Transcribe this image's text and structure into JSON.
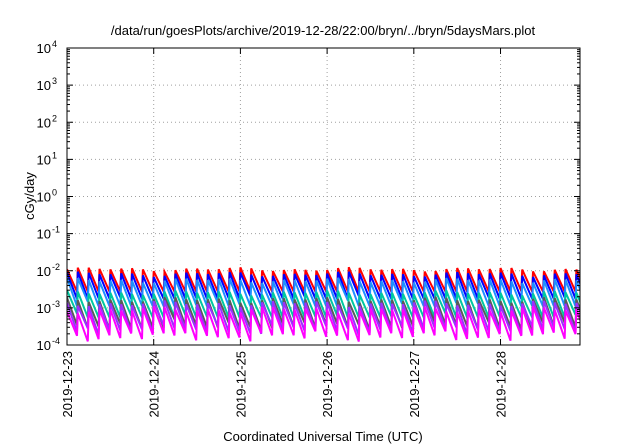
{
  "chart_data": {
    "type": "line",
    "title": "/data/run/goesPlots/archive/2019-12-28/22:00/bryn/../bryn/5daysMars.plot",
    "xlabel": "Coordinated Universal Time (UTC)",
    "ylabel": "cGy/day",
    "yscale": "log",
    "ylim": [
      0.0001,
      10000
    ],
    "xlim": [
      "2019-12-23",
      "2019-12-28T22:00"
    ],
    "grid": true,
    "y_ticks": [
      {
        "value": 0.0001,
        "base": "10",
        "exp": "-4"
      },
      {
        "value": 0.001,
        "base": "10",
        "exp": "-3"
      },
      {
        "value": 0.01,
        "base": "10",
        "exp": "-2"
      },
      {
        "value": 0.1,
        "base": "10",
        "exp": "-1"
      },
      {
        "value": 1,
        "base": "10",
        "exp": "0"
      },
      {
        "value": 10,
        "base": "10",
        "exp": "1"
      },
      {
        "value": 100,
        "base": "10",
        "exp": "2"
      },
      {
        "value": 1000,
        "base": "10",
        "exp": "3"
      },
      {
        "value": 10000,
        "base": "10",
        "exp": "4"
      }
    ],
    "x_ticks": [
      "2019-12-23",
      "2019-12-24",
      "2019-12-25",
      "2019-12-26",
      "2019-12-27",
      "2019-12-28"
    ],
    "series": [
      {
        "color": "#ff0000",
        "level_range": [
          0.0055,
          0.0125
        ]
      },
      {
        "color": "#0000ff",
        "level_range": [
          0.0035,
          0.0095
        ]
      },
      {
        "color": "#1e90ff",
        "level_range": [
          0.0022,
          0.0065
        ]
      },
      {
        "color": "#00c8a0",
        "level_range": [
          0.0011,
          0.003
        ]
      },
      {
        "color": "#5a5a5a",
        "level_range": [
          0.0005,
          0.002
        ]
      },
      {
        "color": "#9b30ff",
        "level_range": [
          0.00035,
          0.0016
        ]
      },
      {
        "color": "#ff00ff",
        "level_range": [
          0.0002,
          0.0011
        ]
      }
    ]
  }
}
